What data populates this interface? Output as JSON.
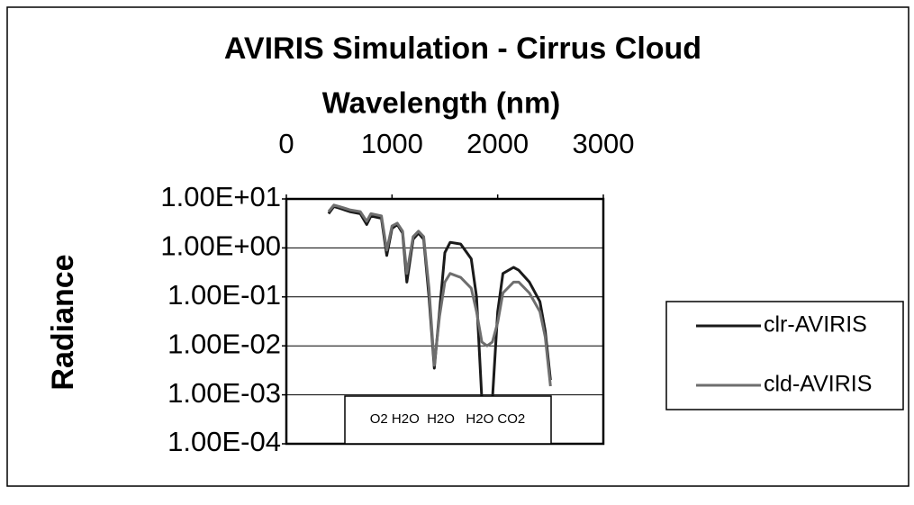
{
  "chart_data": {
    "type": "line",
    "title": "AVIRIS Simulation - Cirrus Cloud",
    "x_label": "Wavelength (nm)",
    "y_label": "Radiance",
    "annotation": "O2 H2O  H2O   H2O CO2",
    "x": [
      400,
      450,
      500,
      600,
      700,
      760,
      800,
      900,
      950,
      1000,
      1050,
      1100,
      1140,
      1200,
      1250,
      1300,
      1350,
      1400,
      1450,
      1500,
      1550,
      1650,
      1750,
      1800,
      1850,
      1900,
      1950,
      2000,
      2050,
      2150,
      2200,
      2300,
      2400,
      2450,
      2500
    ],
    "series": [
      {
        "name": "clr-AVIRIS",
        "color": "#1a1a1a",
        "values": [
          5,
          7,
          6.5,
          5.5,
          5,
          3,
          4.5,
          4,
          0.7,
          2.5,
          3,
          2,
          0.2,
          1.5,
          2,
          1.5,
          0.1,
          0.0035,
          0.05,
          0.8,
          1.3,
          1.2,
          0.6,
          0.1,
          0.0008,
          0.0008,
          0.0008,
          0.05,
          0.3,
          0.4,
          0.35,
          0.2,
          0.08,
          0.02,
          0.002
        ]
      },
      {
        "name": "cld-AVIRIS",
        "color": "#6e6e6e",
        "values": [
          5.5,
          7.5,
          7,
          6,
          5.5,
          3.5,
          5,
          4.5,
          0.9,
          2.8,
          3.2,
          2.2,
          0.3,
          1.7,
          2.2,
          1.7,
          0.15,
          0.004,
          0.04,
          0.2,
          0.3,
          0.25,
          0.15,
          0.05,
          0.012,
          0.01,
          0.012,
          0.03,
          0.12,
          0.2,
          0.2,
          0.12,
          0.05,
          0.015,
          0.0015
        ]
      }
    ],
    "xlim": [
      0,
      3000
    ],
    "xticks": [
      0,
      1000,
      2000,
      3000
    ],
    "ylim": [
      0.0001,
      10
    ],
    "yticks": [
      {
        "value": 0.0001,
        "label": "1.00E-04"
      },
      {
        "value": 0.001,
        "label": "1.00E-03"
      },
      {
        "value": 0.01,
        "label": "1.00E-02"
      },
      {
        "value": 0.1,
        "label": "1.00E-01"
      },
      {
        "value": 1,
        "label": "1.00E+00"
      },
      {
        "value": 10,
        "label": "1.00E+01"
      }
    ],
    "log_y": true,
    "grid": true,
    "legend": "right"
  }
}
